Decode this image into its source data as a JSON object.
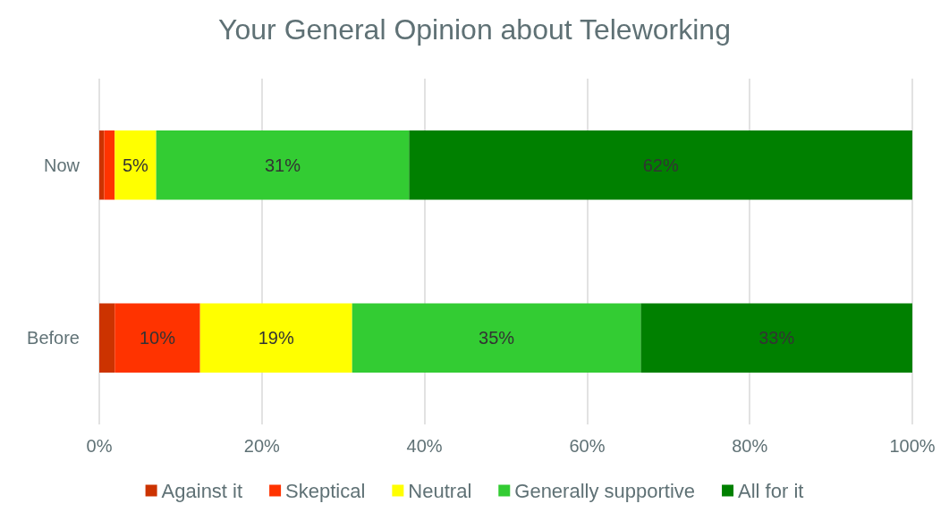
{
  "chart_data": {
    "type": "bar",
    "title": "Your General Opinion about Teleworking",
    "orientation": "horizontal",
    "stacked": true,
    "categories": [
      "Now",
      "Before"
    ],
    "series": [
      {
        "name": "Against it",
        "color": "#cc3300",
        "values": [
          0.6,
          1.9
        ],
        "value_labels": [
          null,
          null
        ]
      },
      {
        "name": "Skeptical",
        "color": "#ff3300",
        "values": [
          1.3,
          10.5
        ],
        "value_labels": [
          null,
          "10%"
        ]
      },
      {
        "name": "Neutral",
        "color": "#ffff00",
        "values": [
          5.1,
          18.7
        ],
        "value_labels": [
          "5%",
          "19%"
        ]
      },
      {
        "name": "Generally supportive",
        "color": "#33cc33",
        "values": [
          31.1,
          35.5
        ],
        "value_labels": [
          "31%",
          "35%"
        ]
      },
      {
        "name": "All for it",
        "color": "#008000",
        "values": [
          61.9,
          33.4
        ],
        "value_labels": [
          "62%",
          "33%"
        ]
      }
    ],
    "xlim": [
      0,
      100
    ],
    "xticks": [
      {
        "value": 0,
        "label": "0%"
      },
      {
        "value": 20,
        "label": "20%"
      },
      {
        "value": 40,
        "label": "40%"
      },
      {
        "value": 60,
        "label": "60%"
      },
      {
        "value": 80,
        "label": "80%"
      },
      {
        "value": 100,
        "label": "100%"
      }
    ],
    "grid": "x",
    "legend": "bottom"
  }
}
